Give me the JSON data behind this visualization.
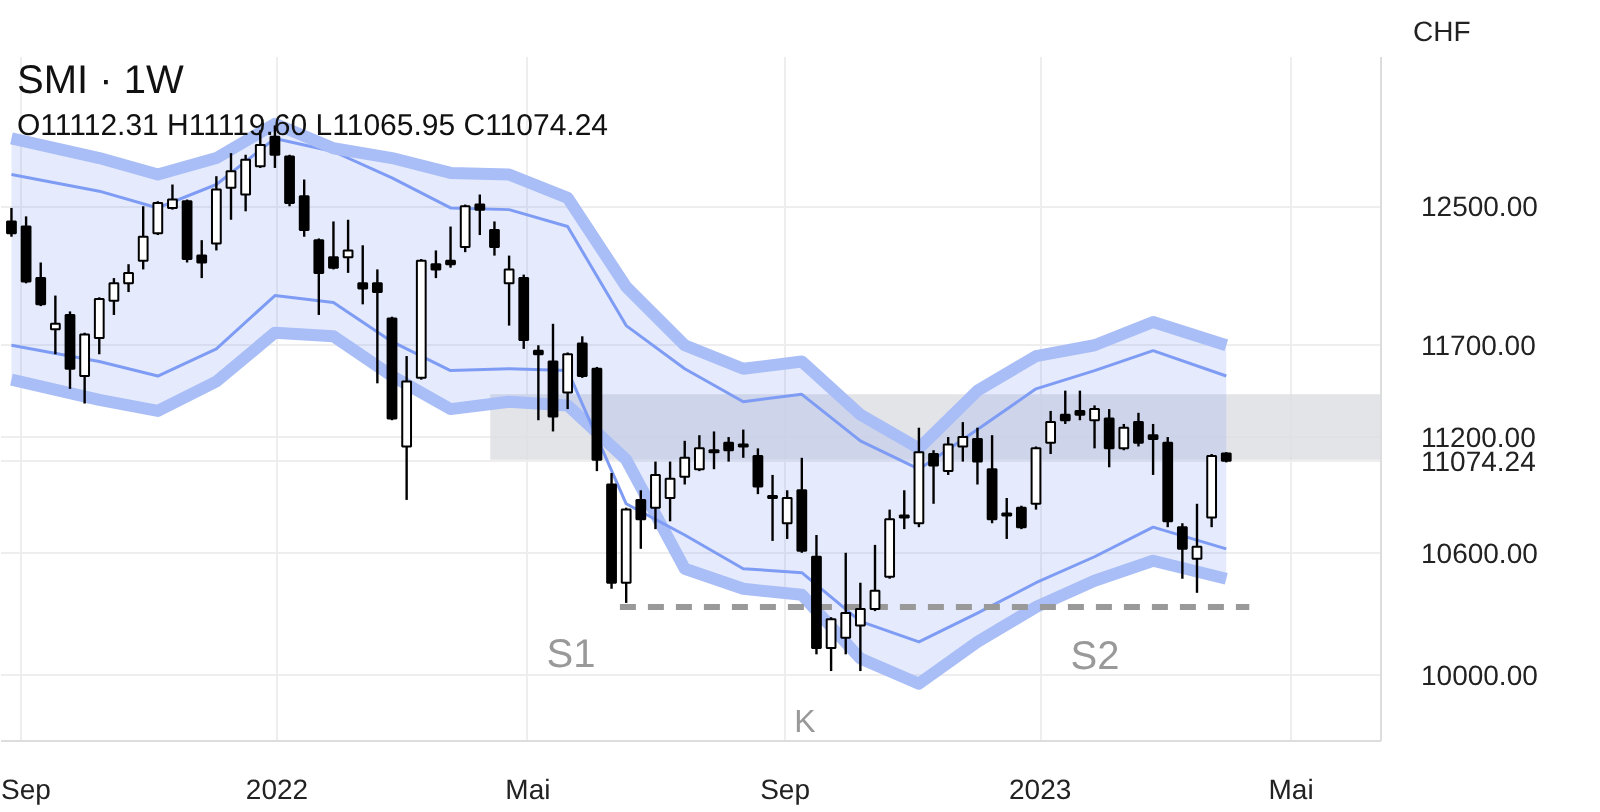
{
  "chart_data": {
    "type": "candlestick",
    "title": "SMI · 1W",
    "subtitle": "O11112.31 H11119.60 L11065.95 C11074.24",
    "ylabel": "CHF",
    "x": [
      "2021-08-27",
      "2021-09-03",
      "2021-09-10",
      "2021-09-17",
      "2021-09-24",
      "2021-10-01",
      "2021-10-08",
      "2021-10-15",
      "2021-10-22",
      "2021-10-29",
      "2021-11-05",
      "2021-11-12",
      "2021-11-19",
      "2021-11-26",
      "2021-12-03",
      "2021-12-10",
      "2021-12-17",
      "2021-12-24",
      "2021-12-31",
      "2022-01-07",
      "2022-01-14",
      "2022-01-21",
      "2022-01-28",
      "2022-02-04",
      "2022-02-11",
      "2022-02-18",
      "2022-02-25",
      "2022-03-04",
      "2022-03-11",
      "2022-03-18",
      "2022-03-25",
      "2022-04-01",
      "2022-04-08",
      "2022-04-15",
      "2022-04-22",
      "2022-04-29",
      "2022-05-06",
      "2022-05-13",
      "2022-05-20",
      "2022-05-27",
      "2022-06-03",
      "2022-06-10",
      "2022-06-17",
      "2022-06-24",
      "2022-07-01",
      "2022-07-08",
      "2022-07-15",
      "2022-07-22",
      "2022-07-29",
      "2022-08-05",
      "2022-08-12",
      "2022-08-19",
      "2022-08-26",
      "2022-09-02",
      "2022-09-09",
      "2022-09-16",
      "2022-09-23",
      "2022-09-30",
      "2022-10-07",
      "2022-10-14",
      "2022-10-21",
      "2022-10-28",
      "2022-11-04",
      "2022-11-11",
      "2022-11-18",
      "2022-11-25",
      "2022-12-02",
      "2022-12-09",
      "2022-12-16",
      "2022-12-23",
      "2022-12-30",
      "2023-01-06",
      "2023-01-13",
      "2023-01-20",
      "2023-01-27",
      "2023-02-03",
      "2023-02-10",
      "2023-02-17",
      "2023-02-24",
      "2023-03-03",
      "2023-03-10",
      "2023-03-17",
      "2023-03-24",
      "2023-03-31"
    ],
    "ohlc": [
      [
        12410,
        12490,
        12320,
        12340
      ],
      [
        12380,
        12440,
        12050,
        12060
      ],
      [
        12080,
        12170,
        11920,
        11930
      ],
      [
        11790,
        11980,
        11650,
        11820
      ],
      [
        11870,
        11890,
        11460,
        11570
      ],
      [
        11530,
        11770,
        11380,
        11760
      ],
      [
        11740,
        11970,
        11650,
        11960
      ],
      [
        11950,
        12080,
        11870,
        12050
      ],
      [
        12050,
        12160,
        12000,
        12110
      ],
      [
        12180,
        12500,
        12130,
        12320
      ],
      [
        12340,
        12530,
        12330,
        12520
      ],
      [
        12490,
        12630,
        12480,
        12540
      ],
      [
        12530,
        12540,
        12170,
        12190
      ],
      [
        12210,
        12300,
        12080,
        12170
      ],
      [
        12280,
        12680,
        12240,
        12600
      ],
      [
        12610,
        12820,
        12420,
        12710
      ],
      [
        12570,
        12810,
        12470,
        12780
      ],
      [
        12740,
        12960,
        12730,
        12870
      ],
      [
        12920,
        12990,
        12730,
        12810
      ],
      [
        12800,
        12810,
        12500,
        12520
      ],
      [
        12560,
        12660,
        12320,
        12360
      ],
      [
        12300,
        12310,
        11870,
        12110
      ],
      [
        12200,
        12410,
        12130,
        12140
      ],
      [
        12200,
        12420,
        12110,
        12240
      ],
      [
        12050,
        12270,
        11930,
        12020
      ],
      [
        12050,
        12130,
        11490,
        12000
      ],
      [
        11850,
        11860,
        11290,
        11300
      ],
      [
        11150,
        11640,
        10870,
        11500
      ],
      [
        11520,
        12190,
        11510,
        12180
      ],
      [
        12160,
        12240,
        12080,
        12130
      ],
      [
        12180,
        12380,
        12140,
        12160
      ],
      [
        12260,
        12510,
        12230,
        12500
      ],
      [
        12510,
        12570,
        12330,
        12480
      ],
      [
        12360,
        12410,
        12210,
        12260
      ],
      [
        12050,
        12210,
        11810,
        12130
      ],
      [
        12080,
        12100,
        11680,
        11730
      ],
      [
        11670,
        11700,
        11290,
        11650
      ],
      [
        11610,
        11820,
        11230,
        11310
      ],
      [
        11440,
        11660,
        11350,
        11650
      ],
      [
        11710,
        11750,
        11520,
        11530
      ],
      [
        11570,
        11580,
        11020,
        11080
      ],
      [
        10950,
        11010,
        10420,
        10450
      ],
      [
        10450,
        10830,
        10350,
        10820
      ],
      [
        10870,
        10920,
        10620,
        10770
      ],
      [
        10830,
        11070,
        10720,
        11000
      ],
      [
        10880,
        11070,
        10760,
        10980
      ],
      [
        10990,
        11180,
        10950,
        11090
      ],
      [
        11030,
        11210,
        11020,
        11140
      ],
      [
        11120,
        11230,
        11030,
        11130
      ],
      [
        11170,
        11200,
        11070,
        11130
      ],
      [
        11150,
        11240,
        11090,
        11160
      ],
      [
        11100,
        11140,
        10900,
        10940
      ],
      [
        10880,
        11000,
        10660,
        10890
      ],
      [
        10750,
        10920,
        10670,
        10880
      ],
      [
        10920,
        11090,
        10600,
        10610
      ],
      [
        10580,
        10690,
        10100,
        10130
      ],
      [
        10130,
        10280,
        10020,
        10270
      ],
      [
        10180,
        10600,
        10100,
        10300
      ],
      [
        10240,
        10450,
        10020,
        10320
      ],
      [
        10320,
        10640,
        10310,
        10410
      ],
      [
        10480,
        10820,
        10470,
        10770
      ],
      [
        10780,
        10920,
        10720,
        10790
      ],
      [
        10750,
        11250,
        10730,
        11120
      ],
      [
        11110,
        11130,
        10850,
        11050
      ],
      [
        11020,
        11200,
        11000,
        11160
      ],
      [
        11150,
        11280,
        11070,
        11200
      ],
      [
        11190,
        11250,
        10950,
        11070
      ],
      [
        11030,
        11210,
        10750,
        10770
      ],
      [
        10790,
        10880,
        10670,
        10800
      ],
      [
        10830,
        10840,
        10720,
        10730
      ],
      [
        10850,
        11150,
        10820,
        11140
      ],
      [
        11170,
        11340,
        11110,
        11280
      ],
      [
        11320,
        11450,
        11270,
        11290
      ],
      [
        11340,
        11450,
        11290,
        11320
      ],
      [
        11290,
        11370,
        11140,
        11350
      ],
      [
        11300,
        11350,
        11040,
        11140
      ],
      [
        11140,
        11270,
        11130,
        11250
      ],
      [
        11280,
        11330,
        11150,
        11170
      ],
      [
        11210,
        11270,
        11000,
        11190
      ],
      [
        11170,
        11200,
        10730,
        10760
      ],
      [
        10730,
        10750,
        10470,
        10620
      ],
      [
        10570,
        10850,
        10400,
        10630
      ],
      [
        10780,
        11110,
        10730,
        11100
      ],
      [
        11112.31,
        11119.6,
        11065.95,
        11074.24
      ]
    ],
    "series": [
      {
        "type": "line",
        "color": "#dcdde2",
        "x": [
          "2022-04-13",
          "2023-06-13"
        ],
        "values": [
          null,
          null
        ],
        "upper": [
          11430,
          11430
        ],
        "lower": [
          11080,
          11080
        ]
      },
      {
        "type": "line",
        "color": "#7f9cf5",
        "x": [
          "2021-08-27",
          "2021-10-08",
          "2021-11-05",
          "2021-12-03",
          "2021-12-31",
          "2022-01-28",
          "2022-02-25",
          "2022-03-25",
          "2022-04-22",
          "2022-05-20",
          "2022-06-17",
          "2022-07-15",
          "2022-08-12",
          "2022-09-09",
          "2022-10-07",
          "2022-11-04",
          "2022-12-02",
          "2022-12-30",
          "2023-01-27",
          "2023-02-24",
          "2023-03-31"
        ],
        "values": [
          12690,
          12590,
          12490,
          12630,
          12910,
          12830,
          12670,
          12490,
          12480,
          12380,
          11810,
          11570,
          11390,
          11430,
          11180,
          11030,
          11240,
          11460,
          11560,
          11670,
          11530
        ],
        "upper": [
          12910,
          12790,
          12690,
          12790,
          13000,
          12850,
          12790,
          12700,
          12690,
          12550,
          12030,
          11700,
          11570,
          11610,
          11320,
          11140,
          11450,
          11640,
          11700,
          11830,
          11700
        ],
        "lower": [
          11510,
          11400,
          11340,
          11500,
          11770,
          11750,
          11530,
          11350,
          11390,
          11370,
          11080,
          10520,
          10420,
          10390,
          10080,
          9960,
          10160,
          10330,
          10460,
          10560,
          10470
        ]
      },
      {
        "type": "line",
        "color": "#a9bdf7",
        "x": [
          "2021-08-27",
          "2021-10-08",
          "2021-11-05",
          "2021-12-03",
          "2021-12-31",
          "2022-01-28",
          "2022-02-25",
          "2022-03-25",
          "2022-04-22",
          "2022-05-20",
          "2022-06-17",
          "2022-07-15",
          "2022-08-12",
          "2022-09-09",
          "2022-10-07",
          "2022-11-04",
          "2022-12-02",
          "2022-12-30",
          "2023-01-27",
          "2023-02-24",
          "2023-03-31"
        ],
        "values": [
          12910,
          12790,
          12690,
          12790,
          13000,
          12850,
          12790,
          12700,
          12690,
          12550,
          12030,
          11700,
          11570,
          11610,
          11320,
          11140,
          11450,
          11640,
          11700,
          11830,
          11700
        ]
      },
      {
        "type": "line",
        "color": "#a9bdf7",
        "x": [
          "2021-08-27",
          "2021-10-08",
          "2021-11-05",
          "2021-12-03",
          "2021-12-31",
          "2022-01-28",
          "2022-02-25",
          "2022-03-25",
          "2022-04-22",
          "2022-05-20",
          "2022-06-17",
          "2022-07-15",
          "2022-08-12",
          "2022-09-09",
          "2022-10-07",
          "2022-11-04",
          "2022-12-02",
          "2022-12-30",
          "2023-01-27",
          "2023-02-24",
          "2023-03-31"
        ],
        "values": [
          11510,
          11400,
          11340,
          11500,
          11770,
          11750,
          11530,
          11350,
          11390,
          11370,
          11080,
          10520,
          10420,
          10390,
          10080,
          9960,
          10160,
          10330,
          10460,
          10560,
          10470
        ]
      },
      {
        "type": "line",
        "color": "#7f9cf5",
        "x": [
          "2021-08-27",
          "2021-10-08",
          "2021-11-05",
          "2021-12-03",
          "2021-12-31",
          "2022-01-28",
          "2022-02-25",
          "2022-03-25",
          "2022-04-22",
          "2022-05-20",
          "2022-06-17",
          "2022-07-15",
          "2022-08-12",
          "2022-09-09",
          "2022-10-07",
          "2022-11-04",
          "2022-12-02",
          "2022-12-30",
          "2023-01-27",
          "2023-02-24",
          "2023-03-31"
        ],
        "values": [
          11700,
          11610,
          11530,
          11680,
          11980,
          11940,
          11720,
          11560,
          11570,
          11560,
          10850,
          10690,
          10520,
          10500,
          10260,
          10160,
          10300,
          10450,
          10580,
          10730,
          10620
        ]
      },
      {
        "type": "line",
        "color": "#999999",
        "line_style": "dashed",
        "x": [
          "2022-06-14",
          "2023-04-11"
        ],
        "values": [
          10330,
          10330
        ]
      }
    ],
    "log": "y",
    "ylim": [
      9692,
      13420
    ],
    "yticks": [
      {
        "value": 11074.24,
        "label": "11074.24"
      },
      {
        "value": 10000,
        "label": "10000.00"
      },
      {
        "value": 10600,
        "label": "10600.00"
      },
      {
        "value": 11200,
        "label": "11200.00"
      },
      {
        "value": 11700,
        "label": "11700.00"
      },
      {
        "value": 12500,
        "label": "12500.00"
      }
    ],
    "xlim": [
      "2021-08-22",
      "2023-06-13"
    ],
    "xticks": [
      {
        "value": "2021-09-01",
        "label": "Sep"
      },
      {
        "value": "2022-01-01",
        "label": "2022"
      },
      {
        "value": "2022-05-01",
        "label": "Mai"
      },
      {
        "value": "2022-09-01",
        "label": "Sep"
      },
      {
        "value": "2023-01-01",
        "label": "2023"
      },
      {
        "value": "2023-05-01",
        "label": "Mai"
      }
    ],
    "grid": true,
    "annotations": [
      "S1",
      "S2",
      "K"
    ]
  }
}
